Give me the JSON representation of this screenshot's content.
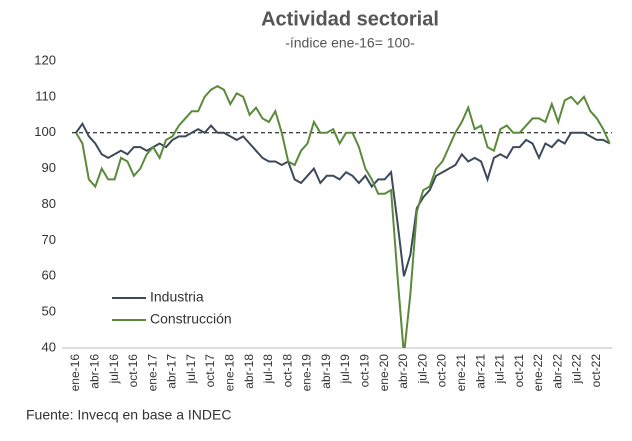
{
  "chart_data": {
    "type": "line",
    "title": "Actividad sectorial",
    "subtitle": "-índice ene-16= 100-",
    "source": "Fuente: Invecq en base a INDEC",
    "categories": [
      "ene-16",
      null,
      null,
      "abr-16",
      null,
      null,
      "jul-16",
      null,
      null,
      "oct-16",
      null,
      null,
      "ene-17",
      null,
      null,
      "abr-17",
      null,
      null,
      "jul-17",
      null,
      null,
      "oct-17",
      null,
      null,
      "ene-18",
      null,
      null,
      "abr-18",
      null,
      null,
      "jul-18",
      null,
      null,
      "oct-18",
      null,
      null,
      "ene-19",
      null,
      null,
      "abr-19",
      null,
      null,
      "jul-19",
      null,
      null,
      "oct-19",
      null,
      null,
      "ene-20",
      null,
      null,
      "abr-20",
      null,
      null,
      "jul-20",
      null,
      null,
      "oct-20",
      null,
      null,
      "ene-21",
      null,
      null,
      "abr-21",
      null,
      null,
      "jul-21",
      null,
      null,
      "oct-21",
      null,
      null,
      "ene-22",
      null,
      null,
      "abr-22",
      null,
      null,
      "jul-22",
      null,
      null,
      "oct-22",
      null,
      null
    ],
    "series": [
      {
        "name": "Industria",
        "color": "#3d4a5c",
        "values": [
          100,
          102.5,
          99,
          97,
          94,
          93,
          94,
          95,
          94,
          96,
          96,
          95,
          96,
          97,
          96,
          98,
          99,
          99,
          100,
          101,
          100,
          102,
          100,
          100,
          99,
          98,
          99,
          97,
          95,
          93,
          92,
          92,
          91,
          92,
          87,
          86,
          88,
          90,
          86,
          88,
          88,
          87,
          89,
          88,
          86,
          88,
          85,
          87,
          87,
          89,
          75,
          60,
          66,
          79,
          82,
          84,
          88,
          89,
          90,
          91,
          94,
          92,
          93,
          92,
          87,
          93,
          94,
          93,
          96,
          96,
          98,
          97,
          93,
          97,
          96,
          98,
          97,
          100,
          100,
          100,
          99,
          98,
          98,
          97
        ]
      },
      {
        "name": "Construcción",
        "color": "#5a8a3a",
        "values": [
          100,
          97,
          87,
          85,
          90,
          87,
          87,
          93,
          92,
          88,
          90,
          94,
          96,
          93,
          98,
          99,
          102,
          104,
          106,
          106,
          110,
          112,
          113,
          112,
          108,
          111,
          110,
          105,
          107,
          104,
          103,
          106,
          100,
          92,
          91,
          95,
          97,
          103,
          100,
          100,
          101,
          97,
          100,
          100,
          96,
          90,
          87,
          83,
          83,
          84,
          60,
          38,
          55,
          78,
          84,
          85,
          90,
          92,
          96,
          100,
          103,
          107,
          101,
          102,
          96,
          95,
          101,
          102,
          100,
          100,
          102,
          104,
          104,
          103,
          108,
          103,
          109,
          110,
          108,
          110,
          106,
          104,
          101,
          97
        ]
      }
    ],
    "ylim": [
      40,
      120
    ],
    "yticks": [
      40,
      50,
      60,
      70,
      80,
      90,
      100,
      110,
      120
    ],
    "reference_line": 100,
    "grid": false,
    "legend": "lower left"
  }
}
